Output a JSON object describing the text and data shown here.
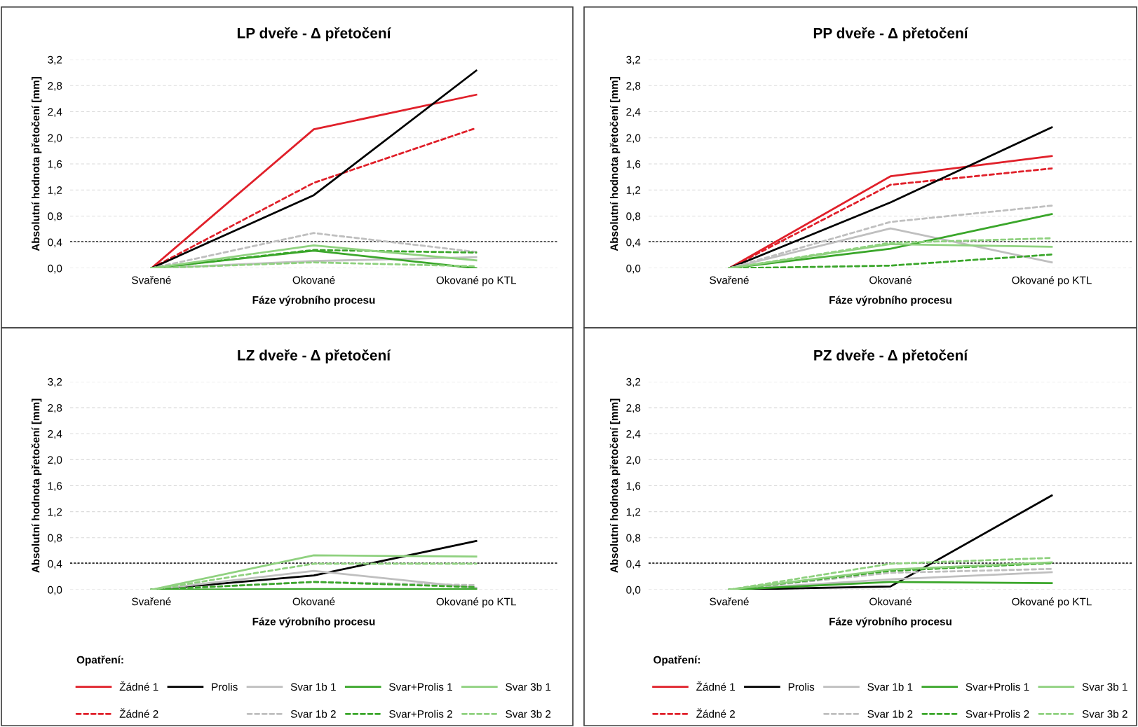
{
  "chart_data": [
    {
      "type": "line",
      "title": "LP dveře - Δ přetočení",
      "xlabel": "Fáze výrobního procesu",
      "ylabel": "Absolutní hodnota přetočení [mm]",
      "categories": [
        "Svařené",
        "Okované",
        "Okované po KTL"
      ],
      "ylim": [
        0,
        3.2
      ],
      "yticks": [
        {
          "value": 0,
          "label": "0,0"
        },
        {
          "value": 0.4,
          "label": "0,4"
        },
        {
          "value": 0.8,
          "label": "0,8"
        },
        {
          "value": 1.2,
          "label": "1,2"
        },
        {
          "value": 1.6,
          "label": "1,6"
        },
        {
          "value": 2.0,
          "label": "2,0"
        },
        {
          "value": 2.4,
          "label": "2,4"
        },
        {
          "value": 2.8,
          "label": "2,8"
        },
        {
          "value": 3.2,
          "label": "3,2"
        }
      ],
      "grid": "y",
      "legend": false,
      "ref_lines": [
        {
          "axis": "y",
          "value": 0.41,
          "color": "#404040",
          "line_style": "dashed"
        }
      ],
      "series": [
        {
          "color": "#e0202a",
          "line_style": "solid",
          "values": [
            0,
            2.13,
            2.66
          ]
        },
        {
          "color": "#e0202a",
          "line_style": "dashed",
          "values": [
            0,
            1.31,
            2.15
          ]
        },
        {
          "color": "#000000",
          "line_style": "solid",
          "values": [
            0,
            1.12,
            3.03
          ]
        },
        {
          "color": "#bfbfbf",
          "line_style": "solid",
          "values": [
            0,
            0.11,
            0.17
          ]
        },
        {
          "color": "#bfbfbf",
          "line_style": "dashed",
          "values": [
            0,
            0.54,
            0.25
          ]
        },
        {
          "color": "#3aa62a",
          "line_style": "solid",
          "values": [
            0,
            0.27,
            0.0
          ]
        },
        {
          "color": "#3aa62a",
          "line_style": "dashed",
          "values": [
            0,
            0.28,
            0.24
          ]
        },
        {
          "color": "#8fd17f",
          "line_style": "solid",
          "values": [
            0,
            0.35,
            0.12
          ]
        },
        {
          "color": "#8fd17f",
          "line_style": "dashed",
          "values": [
            0,
            0.09,
            0.03
          ]
        }
      ]
    },
    {
      "type": "line",
      "title": "PP dveře - Δ přetočení",
      "xlabel": "Fáze výrobního procesu",
      "ylabel": "Absolutní hodnota přetočení [mm]",
      "categories": [
        "Svařené",
        "Okované",
        "Okované po KTL"
      ],
      "ylim": [
        0,
        3.2
      ],
      "yticks": [
        {
          "value": 0,
          "label": "0,0"
        },
        {
          "value": 0.4,
          "label": "0,4"
        },
        {
          "value": 0.8,
          "label": "0,8"
        },
        {
          "value": 1.2,
          "label": "1,2"
        },
        {
          "value": 1.6,
          "label": "1,6"
        },
        {
          "value": 2.0,
          "label": "2,0"
        },
        {
          "value": 2.4,
          "label": "2,4"
        },
        {
          "value": 2.8,
          "label": "2,8"
        },
        {
          "value": 3.2,
          "label": "3,2"
        }
      ],
      "grid": "y",
      "legend": false,
      "ref_lines": [
        {
          "axis": "y",
          "value": 0.41,
          "color": "#404040",
          "line_style": "dashed"
        }
      ],
      "series": [
        {
          "color": "#e0202a",
          "line_style": "solid",
          "values": [
            0,
            1.41,
            1.72
          ]
        },
        {
          "color": "#e0202a",
          "line_style": "dashed",
          "values": [
            0,
            1.28,
            1.53
          ]
        },
        {
          "color": "#000000",
          "line_style": "solid",
          "values": [
            0,
            1.01,
            2.16
          ]
        },
        {
          "color": "#bfbfbf",
          "line_style": "solid",
          "values": [
            0,
            0.61,
            0.09
          ]
        },
        {
          "color": "#bfbfbf",
          "line_style": "dashed",
          "values": [
            0,
            0.71,
            0.96
          ]
        },
        {
          "color": "#3aa62a",
          "line_style": "solid",
          "values": [
            0,
            0.3,
            0.83
          ]
        },
        {
          "color": "#3aa62a",
          "line_style": "dashed",
          "values": [
            0,
            0.04,
            0.21
          ]
        },
        {
          "color": "#8fd17f",
          "line_style": "solid",
          "values": [
            0,
            0.37,
            0.33
          ]
        },
        {
          "color": "#8fd17f",
          "line_style": "dashed",
          "values": [
            0,
            0.39,
            0.46
          ]
        }
      ]
    },
    {
      "type": "line",
      "title": "LZ dveře - Δ přetočení",
      "xlabel": "Fáze výrobního procesu",
      "ylabel": "Absolutní hodnota přetočení [mm]",
      "categories": [
        "Svařené",
        "Okované",
        "Okované po KTL"
      ],
      "ylim": [
        0,
        3.2
      ],
      "yticks": [
        {
          "value": 0,
          "label": "0,0"
        },
        {
          "value": 0.4,
          "label": "0,4"
        },
        {
          "value": 0.8,
          "label": "0,8"
        },
        {
          "value": 1.2,
          "label": "1,2"
        },
        {
          "value": 1.6,
          "label": "1,6"
        },
        {
          "value": 2.0,
          "label": "2,0"
        },
        {
          "value": 2.4,
          "label": "2,4"
        },
        {
          "value": 2.8,
          "label": "2,8"
        },
        {
          "value": 3.2,
          "label": "3,2"
        }
      ],
      "grid": "y",
      "legend": "bottom",
      "legend_title": "Opatření:",
      "ref_lines": [
        {
          "axis": "y",
          "value": 0.41,
          "color": "#000000",
          "line_style": "dashed"
        }
      ],
      "series": [
        {
          "name": "Žádné 1",
          "color": "#e0202a",
          "line_style": "solid",
          "values": [
            null,
            null,
            null
          ]
        },
        {
          "name": "Žádné 2",
          "color": "#e0202a",
          "line_style": "dashed",
          "values": [
            null,
            null,
            null
          ]
        },
        {
          "name": "Prolis",
          "color": "#000000",
          "line_style": "solid",
          "values": [
            0,
            0.22,
            0.75
          ]
        },
        {
          "name": "Svar 1b 1",
          "color": "#bfbfbf",
          "line_style": "solid",
          "values": [
            0,
            0.29,
            0.03
          ]
        },
        {
          "name": "Svar 1b 2",
          "color": "#bfbfbf",
          "line_style": "dashed",
          "values": [
            0,
            0.12,
            0.07
          ]
        },
        {
          "name": "Svar+Prolis 1",
          "color": "#3aa62a",
          "line_style": "solid",
          "values": [
            0,
            0.01,
            0.01
          ]
        },
        {
          "name": "Svar+Prolis 2",
          "color": "#3aa62a",
          "line_style": "dashed",
          "values": [
            0,
            0.12,
            0.04
          ]
        },
        {
          "name": "Svar 3b 1",
          "color": "#8fd17f",
          "line_style": "solid",
          "values": [
            0,
            0.53,
            0.51
          ]
        },
        {
          "name": "Svar 3b 2",
          "color": "#8fd17f",
          "line_style": "dashed",
          "values": [
            0,
            0.4,
            0.4
          ]
        }
      ]
    },
    {
      "type": "line",
      "title": "PZ dveře - Δ přetočení",
      "xlabel": "Fáze výrobního procesu",
      "ylabel": "Absolutní hodnota přetočení [mm]",
      "categories": [
        "Svařené",
        "Okované",
        "Okované po KTL"
      ],
      "ylim": [
        0,
        3.2
      ],
      "yticks": [
        {
          "value": 0,
          "label": "0,0"
        },
        {
          "value": 0.4,
          "label": "0,4"
        },
        {
          "value": 0.8,
          "label": "0,8"
        },
        {
          "value": 1.2,
          "label": "1,2"
        },
        {
          "value": 1.6,
          "label": "1,6"
        },
        {
          "value": 2.0,
          "label": "2,0"
        },
        {
          "value": 2.4,
          "label": "2,4"
        },
        {
          "value": 2.8,
          "label": "2,8"
        },
        {
          "value": 3.2,
          "label": "3,2"
        }
      ],
      "grid": "y",
      "legend": "bottom",
      "legend_title": "Opatření:",
      "ref_lines": [
        {
          "axis": "y",
          "value": 0.41,
          "color": "#000000",
          "line_style": "dashed"
        }
      ],
      "series": [
        {
          "name": "Žádné 1",
          "color": "#e0202a",
          "line_style": "solid",
          "values": [
            null,
            null,
            null
          ]
        },
        {
          "name": "Žádné 2",
          "color": "#e0202a",
          "line_style": "dashed",
          "values": [
            null,
            null,
            null
          ]
        },
        {
          "name": "Prolis",
          "color": "#000000",
          "line_style": "solid",
          "values": [
            0,
            0.05,
            1.45
          ]
        },
        {
          "name": "Svar 1b 1",
          "color": "#bfbfbf",
          "line_style": "solid",
          "values": [
            0,
            0.16,
            0.27
          ]
        },
        {
          "name": "Svar 1b 2",
          "color": "#bfbfbf",
          "line_style": "dashed",
          "values": [
            0,
            0.26,
            0.32
          ]
        },
        {
          "name": "Svar+Prolis 1",
          "color": "#3aa62a",
          "line_style": "solid",
          "values": [
            0,
            0.12,
            0.1
          ]
        },
        {
          "name": "Svar+Prolis 2",
          "color": "#3aa62a",
          "line_style": "dashed",
          "values": [
            0,
            0.29,
            0.41
          ]
        },
        {
          "name": "Svar 3b 1",
          "color": "#8fd17f",
          "line_style": "solid",
          "values": [
            0,
            0.31,
            0.42
          ]
        },
        {
          "name": "Svar 3b 2",
          "color": "#8fd17f",
          "line_style": "dashed",
          "values": [
            0,
            0.4,
            0.49
          ]
        }
      ]
    }
  ]
}
